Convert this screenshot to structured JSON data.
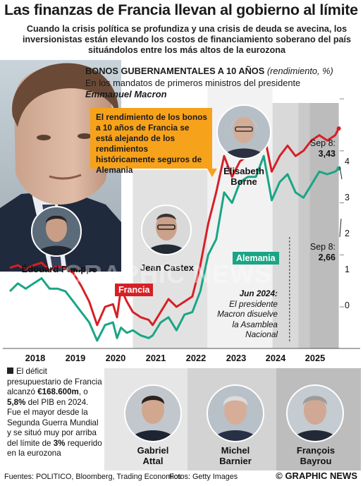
{
  "headline": "Las finanzas de Francia llevan al gobierno al límite",
  "subhead": "Cuando la crisis política se profundiza y una crisis de deuda se avecina, los inversionistas están elevando los costos de financiamiento soberano del país situándolos entre los más altos de la eurozona",
  "chart_title": "BONOS GUBERNAMENTALES A 10 AÑOS",
  "chart_title_unit": "(rendimiento, %)",
  "chart_sub1": "En los mandatos de primeros ministros del presidente",
  "chart_sub2": "Emmanuel Macron",
  "callout": "El rendimiento de los bonos a 10 años de Francia se está alejando de los rendimientos históricamente seguros de Alemania",
  "pms_top": {
    "philippe": "Édouard Philippe",
    "castex": "Jean Castex",
    "borne_first": "Élisabeth",
    "borne_last": "Borne"
  },
  "pms_bottom": [
    {
      "first": "Gabriel",
      "last": "Attal"
    },
    {
      "first": "Michel",
      "last": "Barnier"
    },
    {
      "first": "François",
      "last": "Bayrou"
    }
  ],
  "annotations": {
    "fr_date": "Sep 8:",
    "fr_value": "3,43",
    "de_date": "Sep 8:",
    "de_value": "2,66",
    "jun_date": "Jun 2024:",
    "jun_text": "El presidente Macron disuelve la Asamblea Nacional"
  },
  "footnote": {
    "p1": "El déficit presupuestario de Francia alcanzó ",
    "amount": "€168.600m",
    "p2": ", o ",
    "pct": "5,8%",
    "p3": " del PIB en 2024. Fue el mayor desde la Segunda Guerra Mundial y se situó muy por arriba del límite de ",
    "limit": "3%",
    "p4": " requerido en la eurozona"
  },
  "sources": "Fuentes: POLITICO, Bloomberg, Trading Economics",
  "photos_credit": "Fotos: Getty Images",
  "credit": "© GRAPHIC NEWS",
  "watermark": "GRAPHIC NEWS",
  "colors": {
    "francia": "#d71f26",
    "alemania": "#1aa585",
    "callout": "#f7a21b",
    "band_philippe": "#ffffff",
    "band_castex": "#e4e4e4",
    "band_borne": "#ffffff"
  },
  "chart_data": {
    "type": "line",
    "title": "BONOS GUBERNAMENTALES A 10 AÑOS",
    "ylabel": "(rendimiento, %)",
    "xlim": [
      2017.4,
      2025.75
    ],
    "ylim": [
      -0.8,
      4.3
    ],
    "x_ticks": [
      "2018",
      "2019",
      "2020",
      "2021",
      "2022",
      "2023",
      "2024",
      "2025"
    ],
    "y_ticks": [
      "0",
      "1",
      "2",
      "3",
      "4"
    ],
    "legend": "inline labels",
    "grid": false,
    "terms": [
      {
        "name": "Édouard Philippe",
        "start": 2017.37,
        "end": 2020.5
      },
      {
        "name": "Jean Castex",
        "start": 2020.5,
        "end": 2022.38
      },
      {
        "name": "Élisabeth Borne",
        "start": 2022.38,
        "end": 2024.02
      },
      {
        "name": "Gabriel Attal",
        "start": 2024.02,
        "end": 2024.67
      },
      {
        "name": "Michel Barnier",
        "start": 2024.67,
        "end": 2024.96
      },
      {
        "name": "François Bayrou",
        "start": 2024.96,
        "end": 2025.69
      }
    ],
    "series": [
      {
        "name": "Francia",
        "x": [
          2017.4,
          2017.6,
          2017.8,
          2018.0,
          2018.2,
          2018.4,
          2018.6,
          2018.8,
          2019.0,
          2019.2,
          2019.4,
          2019.6,
          2019.8,
          2020.0,
          2020.1,
          2020.2,
          2020.35,
          2020.5,
          2020.7,
          2020.9,
          2021.0,
          2021.2,
          2021.4,
          2021.6,
          2021.8,
          2022.0,
          2022.2,
          2022.4,
          2022.6,
          2022.8,
          2023.0,
          2023.2,
          2023.4,
          2023.6,
          2023.8,
          2024.0,
          2024.2,
          2024.4,
          2024.6,
          2024.8,
          2025.0,
          2025.2,
          2025.4,
          2025.6,
          2025.69
        ],
        "values": [
          0.75,
          0.8,
          0.72,
          0.8,
          0.85,
          0.7,
          0.78,
          0.75,
          0.65,
          0.4,
          0.1,
          -0.35,
          0.0,
          0.05,
          -0.2,
          0.35,
          0.1,
          -0.1,
          -0.2,
          -0.25,
          -0.35,
          -0.1,
          0.15,
          0.0,
          0.1,
          0.2,
          0.8,
          1.6,
          2.2,
          2.9,
          2.5,
          2.8,
          2.9,
          3.1,
          3.35,
          2.6,
          2.9,
          3.1,
          2.9,
          3.0,
          3.2,
          3.3,
          3.2,
          3.3,
          3.43
        ]
      },
      {
        "name": "Alemania",
        "x": [
          2017.4,
          2017.6,
          2017.8,
          2018.0,
          2018.2,
          2018.4,
          2018.6,
          2018.8,
          2019.0,
          2019.2,
          2019.4,
          2019.6,
          2019.8,
          2020.0,
          2020.1,
          2020.2,
          2020.35,
          2020.5,
          2020.7,
          2020.9,
          2021.0,
          2021.2,
          2021.4,
          2021.6,
          2021.8,
          2022.0,
          2022.2,
          2022.4,
          2022.6,
          2022.8,
          2023.0,
          2023.2,
          2023.4,
          2023.6,
          2023.8,
          2024.0,
          2024.2,
          2024.4,
          2024.6,
          2024.8,
          2025.0,
          2025.2,
          2025.4,
          2025.6,
          2025.69
        ],
        "values": [
          0.3,
          0.45,
          0.35,
          0.45,
          0.55,
          0.35,
          0.35,
          0.3,
          0.1,
          -0.1,
          -0.3,
          -0.65,
          -0.35,
          -0.3,
          -0.6,
          -0.4,
          -0.5,
          -0.45,
          -0.55,
          -0.6,
          -0.55,
          -0.3,
          -0.2,
          -0.45,
          -0.15,
          -0.1,
          0.3,
          1.0,
          1.3,
          2.2,
          2.0,
          2.4,
          2.5,
          2.5,
          2.9,
          2.05,
          2.4,
          2.55,
          2.2,
          2.1,
          2.35,
          2.6,
          2.55,
          2.6,
          2.66
        ]
      }
    ]
  }
}
